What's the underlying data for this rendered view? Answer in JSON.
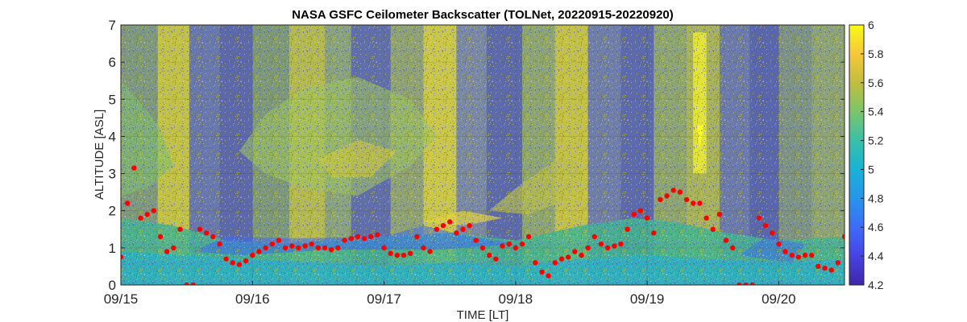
{
  "chart_data": {
    "type": "heatmap",
    "title": "NASA GSFC Ceilometer Backscatter (TOLNet, 20220915-20220920)",
    "xlabel": "TIME [LT]",
    "ylabel": "ALTITUDE [ASL]",
    "xlim": [
      "09/15 00:00",
      "09/20 12:00"
    ],
    "ylim": [
      0,
      7
    ],
    "x_ticks": [
      "09/15",
      "09/16",
      "09/17",
      "09/18",
      "09/19",
      "09/20"
    ],
    "y_ticks": [
      "0",
      "1",
      "2",
      "3",
      "4",
      "5",
      "6",
      "7"
    ],
    "colorbar": {
      "range": [
        4.2,
        6
      ],
      "ticks": [
        "4.2",
        "4.4",
        "4.6",
        "4.8",
        "5",
        "5.2",
        "5.4",
        "5.6",
        "5.8",
        "6"
      ],
      "colormap": [
        "#3e26a8",
        "#4743e4",
        "#3d6cf8",
        "#2795ea",
        "#1ab2d6",
        "#3ac0a8",
        "#7bc56b",
        "#c1bd40",
        "#f6c73a",
        "#f9fb15"
      ]
    },
    "grid": true,
    "series": [
      {
        "type": "scatter",
        "color": "#ff0000",
        "description_points_x_days": [
          0.0,
          0.05,
          0.1,
          0.15,
          0.2,
          0.25,
          0.3,
          0.35,
          0.4,
          0.45,
          0.5,
          0.55,
          0.6,
          0.65,
          0.7,
          0.75,
          0.8,
          0.85,
          0.9,
          0.95,
          1.0,
          1.05,
          1.1,
          1.15,
          1.2,
          1.25,
          1.3,
          1.35,
          1.4,
          1.45,
          1.5,
          1.55,
          1.6,
          1.65,
          1.7,
          1.75,
          1.8,
          1.85,
          1.9,
          1.95,
          2.0,
          2.05,
          2.1,
          2.15,
          2.2,
          2.25,
          2.3,
          2.35,
          2.4,
          2.45,
          2.5,
          2.55,
          2.6,
          2.65,
          2.7,
          2.75,
          2.8,
          2.85,
          2.9,
          2.95,
          3.0,
          3.05,
          3.1,
          3.15,
          3.2,
          3.25,
          3.3,
          3.35,
          3.4,
          3.45,
          3.5,
          3.55,
          3.6,
          3.65,
          3.7,
          3.75,
          3.8,
          3.85,
          3.9,
          3.95,
          4.0,
          4.05,
          4.1,
          4.15,
          4.2,
          4.25,
          4.3,
          4.35,
          4.4,
          4.45,
          4.5,
          4.55,
          4.6,
          4.65,
          4.7,
          4.75,
          4.8,
          4.85,
          4.9,
          4.95,
          5.0,
          5.05,
          5.1,
          5.15,
          5.2,
          5.25,
          5.3,
          5.35,
          5.4,
          5.45,
          5.5
        ],
        "values": [
          0.75,
          2.2,
          3.15,
          1.8,
          1.9,
          2.0,
          1.3,
          0.9,
          1.0,
          1.5,
          0.0,
          0.0,
          1.5,
          1.4,
          1.3,
          1.1,
          0.7,
          0.6,
          0.55,
          0.65,
          0.8,
          0.9,
          1.0,
          1.1,
          1.2,
          1.0,
          1.05,
          1.0,
          1.05,
          1.1,
          1.0,
          1.0,
          0.95,
          1.0,
          1.2,
          1.25,
          1.3,
          1.25,
          1.3,
          1.35,
          1.0,
          0.85,
          0.8,
          0.8,
          0.85,
          1.3,
          1.0,
          0.9,
          1.5,
          1.6,
          1.7,
          1.4,
          1.5,
          1.6,
          1.2,
          1.0,
          0.8,
          0.7,
          1.05,
          1.1,
          1.0,
          1.1,
          1.3,
          0.6,
          0.35,
          0.25,
          0.6,
          0.7,
          0.75,
          0.9,
          0.8,
          1.0,
          1.3,
          1.1,
          1.0,
          1.05,
          1.1,
          1.5,
          1.9,
          2.0,
          1.8,
          1.4,
          2.3,
          2.4,
          2.55,
          2.5,
          2.3,
          2.2,
          2.2,
          1.8,
          1.5,
          1.9,
          1.2,
          1.0,
          0.0,
          0.0,
          0.0,
          1.8,
          1.6,
          1.4,
          1.1,
          0.9,
          0.8,
          0.75,
          0.8,
          0.8,
          0.5,
          0.45,
          0.4,
          0.6,
          1.3
        ]
      }
    ]
  }
}
